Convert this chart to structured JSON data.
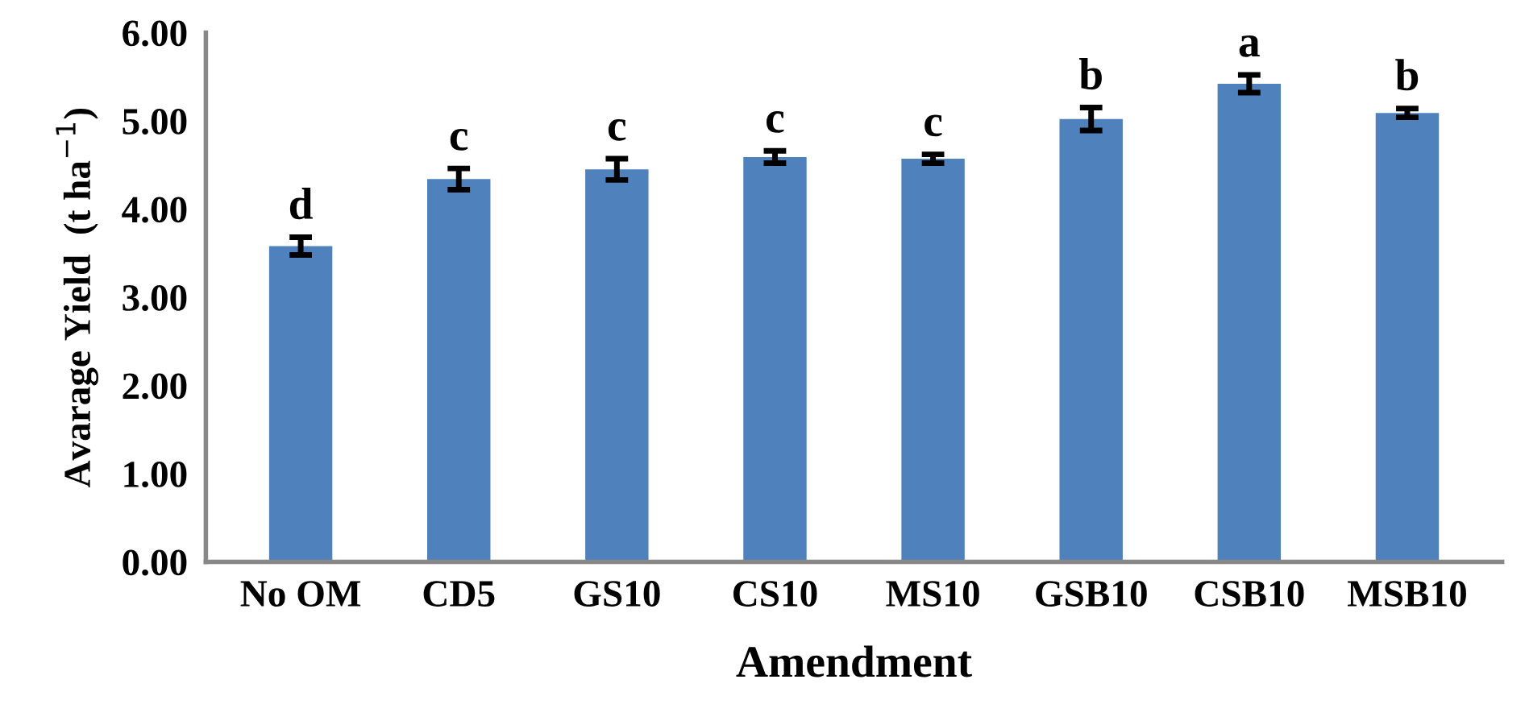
{
  "chart_data": {
    "type": "bar",
    "xlabel": "Amendment",
    "ylabel": "Avarage Yield  (t ha$^{−1}$)",
    "categories": [
      "No OM",
      "CD5",
      "GS10",
      "CS10",
      "MS10",
      "GSB10",
      "CSB10",
      "MSB10"
    ],
    "values": [
      3.58,
      4.34,
      4.45,
      4.59,
      4.57,
      5.02,
      5.42,
      5.09
    ],
    "errors": [
      0.1,
      0.12,
      0.12,
      0.07,
      0.05,
      0.13,
      0.1,
      0.05
    ],
    "color": "#4f81bd",
    "ylim": [
      0,
      6
    ],
    "yticks": [
      {
        "value": 0,
        "label": "0.00"
      },
      {
        "value": 1,
        "label": "1.00"
      },
      {
        "value": 2,
        "label": "2.00"
      },
      {
        "value": 3,
        "label": "3.00"
      },
      {
        "value": 4,
        "label": "4.00"
      },
      {
        "value": 5,
        "label": "5.00"
      },
      {
        "value": 6,
        "label": "6.00"
      }
    ],
    "grid": false,
    "annotations": [
      {
        "text": "d",
        "x": "No OM",
        "y": 3.58
      },
      {
        "text": "c",
        "x": "CD5",
        "y": 4.34
      },
      {
        "text": "c",
        "x": "GS10",
        "y": 4.45
      },
      {
        "text": "c",
        "x": "CS10",
        "y": 4.59
      },
      {
        "text": "c",
        "x": "MS10",
        "y": 4.57
      },
      {
        "text": "b",
        "x": "GSB10",
        "y": 5.02
      },
      {
        "text": "a",
        "x": "CSB10",
        "y": 5.42
      },
      {
        "text": "b",
        "x": "MSB10",
        "y": 5.09
      }
    ]
  }
}
